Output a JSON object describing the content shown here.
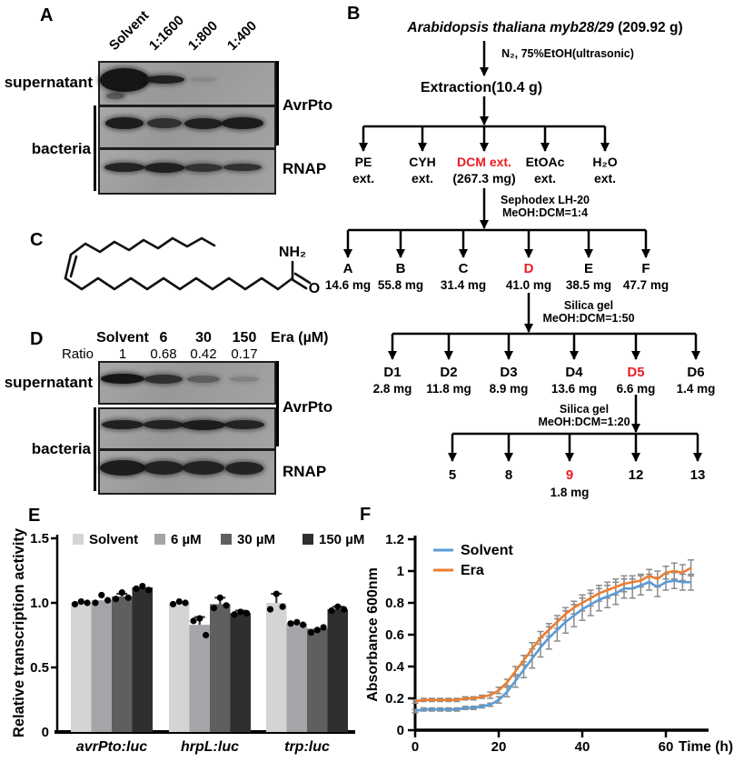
{
  "panels": {
    "a": "A",
    "b": "B",
    "c": "C",
    "d": "D",
    "e": "E",
    "f": "F"
  },
  "panel_a": {
    "lane_labels": [
      "Solvent",
      "1:1600",
      "1:800",
      "1:400"
    ],
    "supernatant_label": "supernatant",
    "bacteria_label": "bacteria",
    "blot_labels": {
      "avrpto": "AvrPto",
      "rnap": "RNAP"
    },
    "bands": [
      [
        {
          "w": 54,
          "h": 26,
          "o": 1,
          "extra": {
            "w": 20,
            "h": 7,
            "o": 0.5,
            "dx": -10,
            "dy": 18
          }
        },
        {
          "w": 44,
          "h": 9,
          "o": 0.92
        },
        {
          "w": 28,
          "h": 5,
          "o": 0.12
        },
        null
      ],
      [
        {
          "w": 42,
          "h": 13,
          "o": 0.95
        },
        {
          "w": 38,
          "h": 11,
          "o": 0.8
        },
        {
          "w": 42,
          "h": 12,
          "o": 0.92
        },
        {
          "w": 46,
          "h": 13,
          "o": 0.95
        }
      ],
      [
        {
          "w": 44,
          "h": 10,
          "o": 0.9
        },
        {
          "w": 44,
          "h": 11,
          "o": 0.92
        },
        {
          "w": 42,
          "h": 9,
          "o": 0.78
        },
        {
          "w": 42,
          "h": 8,
          "o": 0.8
        }
      ]
    ]
  },
  "panel_b": {
    "title_italic": "Arabidopsis thaliana myb28/29",
    "title_suffix": " (209.92 g)",
    "step1": "N₂, 75%EtOH(ultrasonic)",
    "extraction": "Extraction(10.4 g)",
    "level1": [
      [
        "PE",
        "ext."
      ],
      [
        "CYH",
        "ext."
      ],
      [
        "DCM ext.",
        "(267.3 mg)"
      ],
      [
        "EtOAc",
        "ext."
      ],
      [
        "H₂O",
        "ext."
      ]
    ],
    "level1_highlight": 2,
    "step2": [
      "Sephodex LH-20",
      "MeOH:DCM=1:4"
    ],
    "level2_names": [
      "A",
      "B",
      "C",
      "D",
      "E",
      "F"
    ],
    "level2_masses": [
      "14.6 mg",
      "55.8 mg",
      "31.4 mg",
      "41.0 mg",
      "38.5 mg",
      "47.7 mg"
    ],
    "level2_highlight": 3,
    "step3": [
      "Silica gel",
      "MeOH:DCM=1:50"
    ],
    "level3_names": [
      "D1",
      "D2",
      "D3",
      "D4",
      "D5",
      "D6"
    ],
    "level3_masses": [
      "2.8 mg",
      "11.8 mg",
      "8.9 mg",
      "13.6 mg",
      "6.6 mg",
      "1.4 mg"
    ],
    "level3_highlight": 4,
    "step4": [
      "Silica gel",
      "MeOH:DCM=1:20"
    ],
    "level4_names": [
      "5",
      "8",
      "9",
      "12",
      "13"
    ],
    "level4_highlight": 2,
    "level4_mass": "1.8 mg",
    "highlight_color": "#ed1c24"
  },
  "panel_c": {
    "amide_label": "NH₂",
    "oxygen_label": "O"
  },
  "panel_d": {
    "header_lanes": [
      "Solvent",
      "6",
      "30",
      "150"
    ],
    "header_unit": "Era (µM)",
    "ratio_label": "Ratio",
    "ratios": [
      "1",
      "0.68",
      "0.42",
      "0.17"
    ],
    "supernatant_label": "supernatant",
    "bacteria_label": "bacteria",
    "blot_labels": {
      "avrpto": "AvrPto",
      "rnap": "RNAP"
    },
    "bands": [
      [
        {
          "w": 48,
          "h": 11,
          "o": 1
        },
        {
          "w": 42,
          "h": 10,
          "o": 0.8
        },
        {
          "w": 36,
          "h": 8,
          "o": 0.45
        },
        {
          "w": 32,
          "h": 6,
          "o": 0.2
        }
      ],
      [
        {
          "w": 46,
          "h": 10,
          "o": 0.92
        },
        {
          "w": 44,
          "h": 10,
          "o": 0.9
        },
        {
          "w": 48,
          "h": 11,
          "o": 0.95
        },
        {
          "w": 44,
          "h": 10,
          "o": 0.9
        }
      ],
      [
        {
          "w": 50,
          "h": 17,
          "o": 0.95
        },
        {
          "w": 44,
          "h": 15,
          "o": 0.9
        },
        {
          "w": 46,
          "h": 15,
          "o": 0.9
        },
        {
          "w": 42,
          "h": 14,
          "o": 0.9
        }
      ]
    ]
  },
  "chart_data": [
    {
      "id": "E",
      "type": "bar",
      "ylabel": "Relative transcription activity",
      "ylim": [
        0,
        1.5
      ],
      "ytick_labels": [
        "0",
        "0.5",
        "1.0",
        "1.5"
      ],
      "yticks": [
        0,
        0.5,
        1.0,
        1.5
      ],
      "categories": [
        "avrPto:luc",
        "hrpL:luc",
        "trp:luc"
      ],
      "legend_position": "top",
      "error_color": "#3c3c3c",
      "series": [
        {
          "name": "Solvent",
          "color": "#d4d4d4",
          "values": [
            1.0,
            1.0,
            1.0
          ],
          "errors": [
            0,
            0,
            0.07
          ],
          "points": [
            [
              0.99,
              1.01,
              1.0
            ],
            [
              0.99,
              1.01,
              1.0
            ],
            [
              0.95,
              1.07,
              0.97
            ]
          ]
        },
        {
          "name": "6 µM",
          "color": "#a5a5a9",
          "values": [
            1.02,
            0.83,
            0.84
          ],
          "errors": [
            0,
            0.06,
            0
          ],
          "points": [
            [
              1.0,
              1.06,
              1.02
            ],
            [
              0.86,
              0.88,
              0.75
            ],
            [
              0.84,
              0.85,
              0.83
            ]
          ]
        },
        {
          "name": "30 µM",
          "color": "#5f5f5f",
          "values": [
            1.05,
            0.99,
            0.8
          ],
          "errors": [
            0.02,
            0.05,
            0
          ],
          "points": [
            [
              1.03,
              1.08,
              1.04
            ],
            [
              0.96,
              1.04,
              0.98
            ],
            [
              0.77,
              0.79,
              0.81
            ]
          ]
        },
        {
          "name": "150 µM",
          "color": "#2f2f31",
          "values": [
            1.12,
            0.92,
            0.95
          ],
          "errors": [
            0,
            0.02,
            0.02
          ],
          "points": [
            [
              1.11,
              1.13,
              1.1
            ],
            [
              0.91,
              0.93,
              0.92
            ],
            [
              0.94,
              0.97,
              0.95
            ]
          ]
        }
      ]
    },
    {
      "id": "F",
      "type": "line",
      "ylabel": "Absorbance 600nm",
      "xlabel": "Time (h)",
      "ylim": [
        0,
        1.2
      ],
      "xlim": [
        0,
        66
      ],
      "ytick_labels": [
        "0",
        "0.2",
        "0.4",
        "0.6",
        "0.8",
        "1",
        "1.2"
      ],
      "yticks": [
        0,
        0.2,
        0.4,
        0.6,
        0.8,
        1.0,
        1.2
      ],
      "xticks": [
        0,
        20,
        40,
        60
      ],
      "xtick_labels": [
        "0",
        "20",
        "40",
        "60"
      ],
      "legend_position": "top-left-inside",
      "error_color": "#8c8c8c",
      "x": [
        0,
        2,
        4,
        6,
        8,
        10,
        12,
        14,
        16,
        18,
        20,
        22,
        24,
        26,
        28,
        30,
        32,
        34,
        36,
        38,
        40,
        42,
        44,
        46,
        48,
        50,
        52,
        54,
        56,
        58,
        60,
        62,
        64,
        66
      ],
      "series": [
        {
          "name": "Solvent",
          "color": "#5b9bd5",
          "values": [
            0.12,
            0.13,
            0.13,
            0.13,
            0.13,
            0.13,
            0.14,
            0.14,
            0.15,
            0.16,
            0.19,
            0.24,
            0.31,
            0.38,
            0.45,
            0.52,
            0.58,
            0.63,
            0.68,
            0.72,
            0.76,
            0.79,
            0.82,
            0.84,
            0.86,
            0.89,
            0.89,
            0.91,
            0.93,
            0.9,
            0.93,
            0.94,
            0.93,
            0.93
          ],
          "errors": [
            0.01,
            0.01,
            0.01,
            0.01,
            0.01,
            0.01,
            0.01,
            0.01,
            0.01,
            0.01,
            0.02,
            0.03,
            0.04,
            0.05,
            0.06,
            0.06,
            0.07,
            0.07,
            0.07,
            0.07,
            0.07,
            0.07,
            0.07,
            0.07,
            0.07,
            0.06,
            0.06,
            0.06,
            0.05,
            0.06,
            0.05,
            0.05,
            0.05,
            0.05
          ]
        },
        {
          "name": "Era",
          "color": "#ed7d31",
          "values": [
            0.18,
            0.19,
            0.19,
            0.19,
            0.19,
            0.19,
            0.2,
            0.2,
            0.21,
            0.22,
            0.25,
            0.3,
            0.37,
            0.44,
            0.51,
            0.58,
            0.63,
            0.68,
            0.73,
            0.77,
            0.8,
            0.83,
            0.86,
            0.88,
            0.9,
            0.92,
            0.93,
            0.94,
            0.97,
            0.95,
            0.99,
            1.0,
            0.99,
            1.02
          ],
          "errors": [
            0.01,
            0.01,
            0.01,
            0.01,
            0.01,
            0.01,
            0.01,
            0.01,
            0.01,
            0.02,
            0.02,
            0.02,
            0.03,
            0.03,
            0.04,
            0.04,
            0.04,
            0.04,
            0.04,
            0.04,
            0.05,
            0.05,
            0.05,
            0.05,
            0.05,
            0.05,
            0.04,
            0.04,
            0.04,
            0.05,
            0.04,
            0.05,
            0.05,
            0.05
          ]
        }
      ]
    }
  ]
}
